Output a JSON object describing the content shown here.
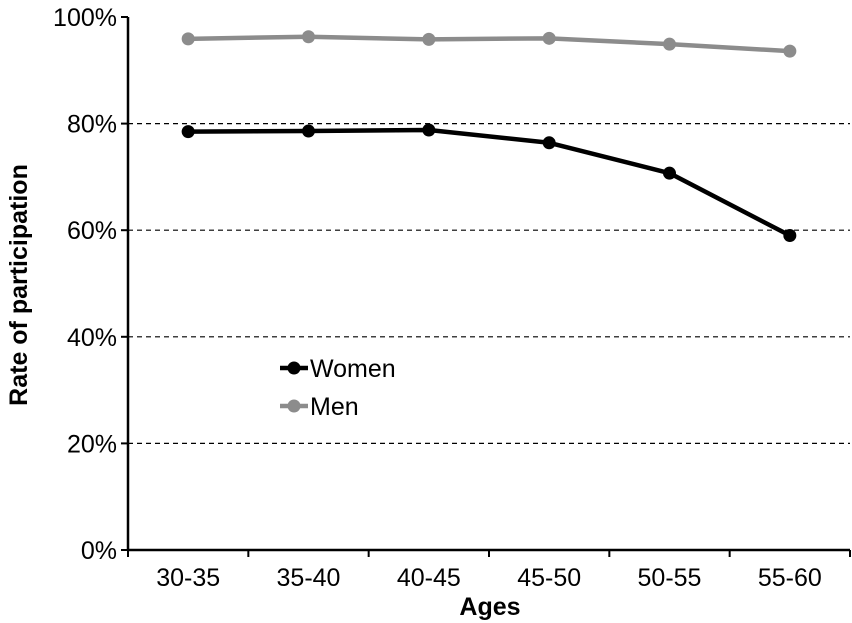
{
  "chart_data": {
    "type": "line",
    "title": "",
    "xlabel": "Ages",
    "ylabel": "Rate of participation",
    "categories": [
      "30-35",
      "35-40",
      "40-45",
      "45-50",
      "50-55",
      "55-60"
    ],
    "ylim": [
      0,
      100
    ],
    "yticks": [
      "0%",
      "20%",
      "40%",
      "60%",
      "80%",
      "100%"
    ],
    "grid": "horizontal dashed",
    "legend_position": "center-left",
    "series": [
      {
        "name": "Women",
        "color": "#000000",
        "values": [
          78.5,
          78.6,
          78.8,
          76.4,
          70.7,
          59.0
        ]
      },
      {
        "name": "Men",
        "color": "#8c8c8c",
        "values": [
          95.9,
          96.3,
          95.8,
          96.0,
          94.9,
          93.6
        ]
      }
    ]
  }
}
